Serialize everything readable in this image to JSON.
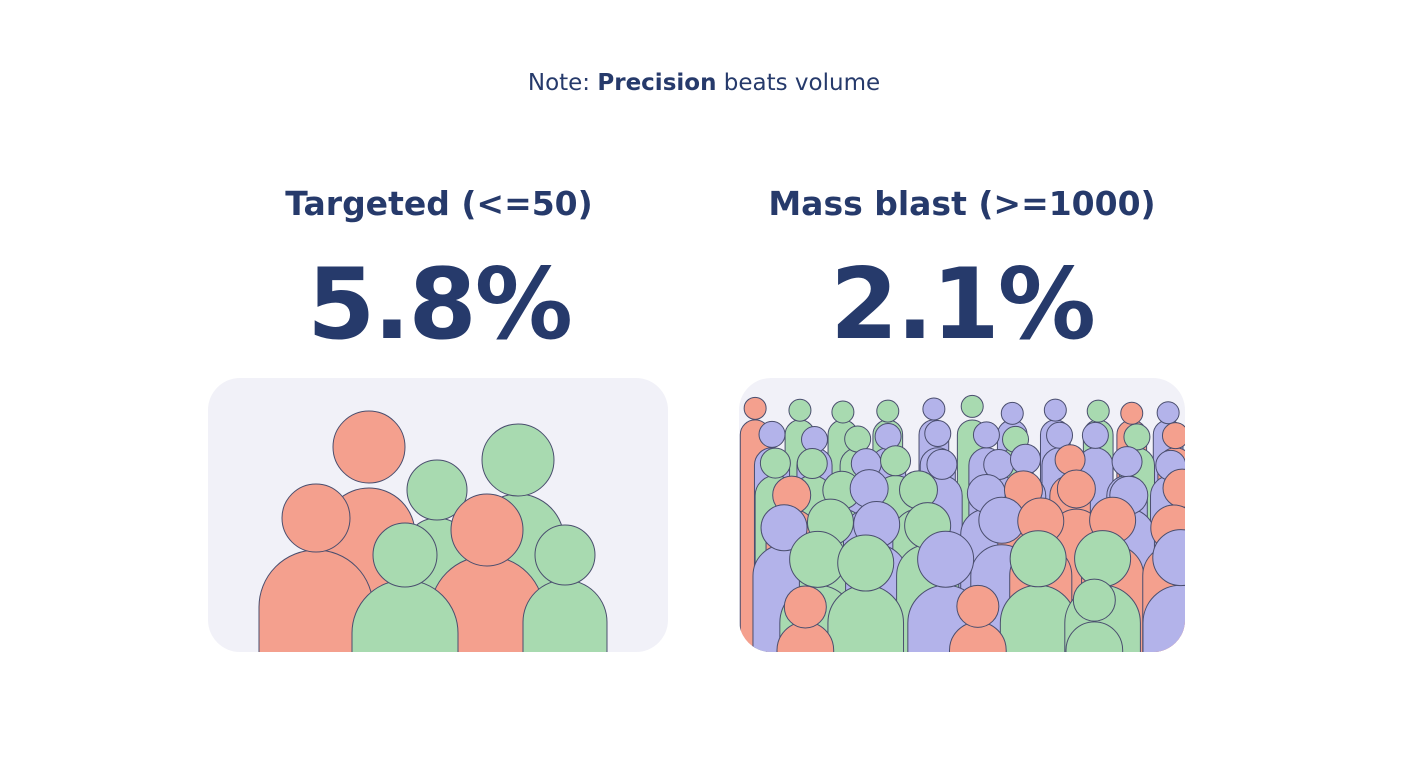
{
  "note": {
    "prefix": "Note:",
    "emphasis": "Precision",
    "suffix": "beats volume"
  },
  "panels": [
    {
      "title": "Targeted (<=50)",
      "value": "5.8%"
    },
    {
      "title": "Mass blast (>=1000)",
      "value": "2.1%"
    }
  ]
}
